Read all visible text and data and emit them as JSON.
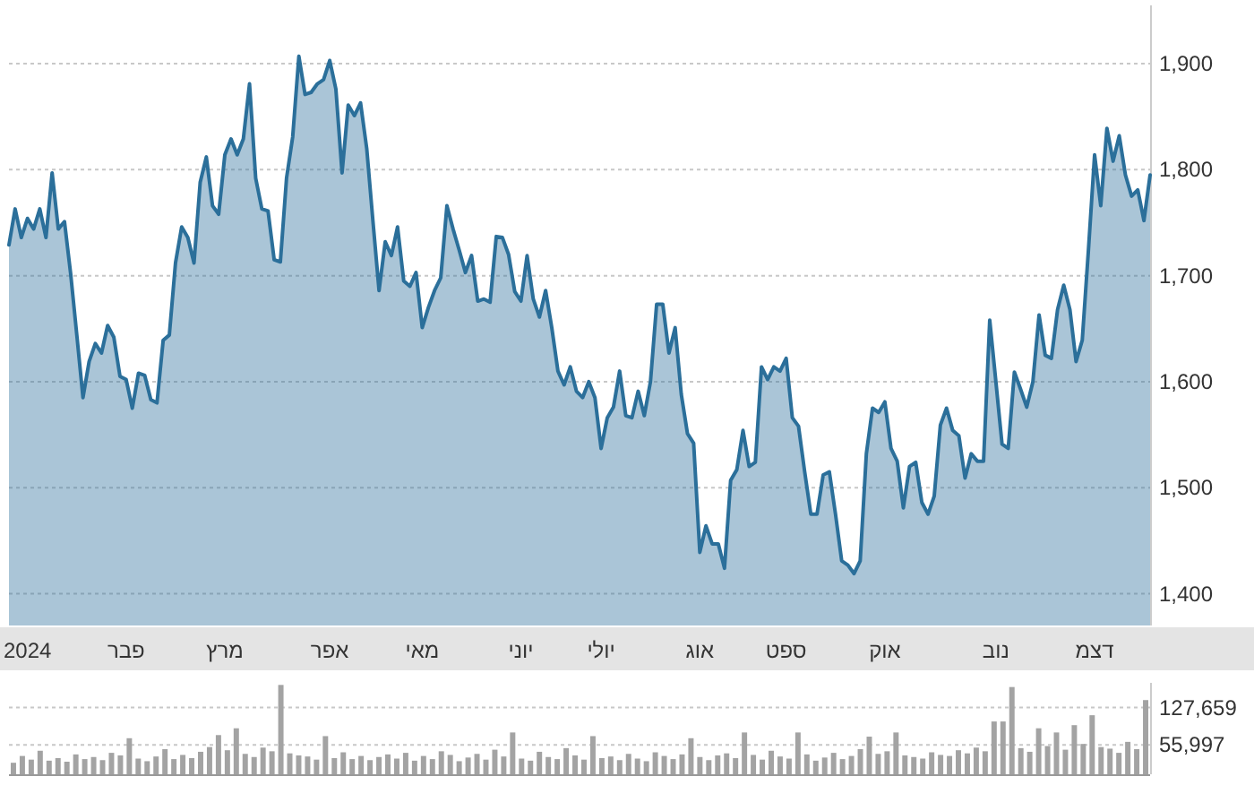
{
  "chart_data": [
    {
      "type": "area",
      "ylim": [
        1370,
        1955
      ],
      "grid": "y",
      "categories": [
        null,
        null,
        null,
        "2024",
        null,
        null,
        null,
        null,
        null,
        null,
        null,
        null,
        null,
        null,
        null,
        null,
        null,
        null,
        null,
        "פבר",
        null,
        null,
        null,
        null,
        null,
        null,
        null,
        null,
        null,
        null,
        null,
        null,
        null,
        null,
        null,
        "מרץ",
        null,
        null,
        null,
        null,
        null,
        null,
        null,
        null,
        null,
        null,
        null,
        null,
        null,
        null,
        null,
        null,
        "אפר",
        null,
        null,
        null,
        null,
        null,
        null,
        null,
        null,
        null,
        null,
        null,
        null,
        null,
        null,
        "מאי",
        null,
        null,
        null,
        null,
        null,
        null,
        null,
        null,
        null,
        null,
        null,
        null,
        null,
        null,
        null,
        "יוני",
        null,
        null,
        null,
        null,
        null,
        null,
        null,
        null,
        null,
        null,
        null,
        null,
        "יולי",
        null,
        null,
        null,
        null,
        null,
        null,
        null,
        null,
        null,
        null,
        null,
        null,
        null,
        null,
        null,
        "אוג",
        null,
        null,
        null,
        null,
        null,
        null,
        null,
        null,
        null,
        null,
        null,
        null,
        null,
        "ספט",
        null,
        null,
        null,
        null,
        null,
        null,
        null,
        null,
        null,
        null,
        null,
        null,
        null,
        null,
        null,
        "אוק",
        null,
        null,
        null,
        null,
        null,
        null,
        null,
        null,
        null,
        null,
        null,
        null,
        null,
        null,
        null,
        null,
        null,
        "נוב",
        null,
        null,
        null,
        null,
        null,
        null,
        null,
        null,
        null,
        null,
        null,
        null,
        null,
        null,
        null,
        "דצמ",
        null,
        null,
        null,
        null,
        null,
        null,
        null,
        null,
        null
      ],
      "yticks": [
        {
          "value": 1400,
          "label": "1,400"
        },
        {
          "value": 1500,
          "label": "1,500"
        },
        {
          "value": 1600,
          "label": "1,600"
        },
        {
          "value": 1700,
          "label": "1,700"
        },
        {
          "value": 1800,
          "label": "1,800"
        },
        {
          "value": 1900,
          "label": "1,900"
        }
      ],
      "series": [
        {
          "color": "#2b6f9a",
          "values": [
            1729,
            1763,
            1736,
            1754,
            1744,
            1763,
            1736,
            1797,
            1744,
            1751,
            1702,
            1644,
            1585,
            1619,
            1636,
            1627,
            1653,
            1642,
            1605,
            1602,
            1575,
            1608,
            1606,
            1583,
            1580,
            1639,
            1644,
            1712,
            1746,
            1736,
            1712,
            1788,
            1812,
            1766,
            1758,
            1814,
            1829,
            1814,
            1829,
            1881,
            1792,
            1763,
            1761,
            1715,
            1713,
            1792,
            1831,
            1907,
            1871,
            1873,
            1881,
            1885,
            1903,
            1876,
            1797,
            1861,
            1851,
            1863,
            1820,
            1752,
            1686,
            1732,
            1719,
            1746,
            1695,
            1690,
            1703,
            1651,
            1670,
            1686,
            1698,
            1766,
            1744,
            1724,
            1703,
            1719,
            1676,
            1678,
            1675,
            1737,
            1736,
            1720,
            1685,
            1676,
            1719,
            1678,
            1661,
            1686,
            1651,
            1610,
            1597,
            1614,
            1591,
            1585,
            1600,
            1585,
            1537,
            1566,
            1576,
            1610,
            1568,
            1566,
            1591,
            1568,
            1600,
            1673,
            1673,
            1627,
            1651,
            1588,
            1551,
            1542,
            1439,
            1464,
            1447,
            1447,
            1424,
            1507,
            1517,
            1554,
            1520,
            1524,
            1614,
            1602,
            1614,
            1610,
            1622,
            1566,
            1558,
            1515,
            1475,
            1475,
            1512,
            1515,
            1475,
            1431,
            1427,
            1419,
            1431,
            1532,
            1575,
            1571,
            1581,
            1537,
            1525,
            1481,
            1520,
            1524,
            1486,
            1475,
            1492,
            1559,
            1575,
            1554,
            1549,
            1509,
            1532,
            1525,
            1525,
            1658,
            1600,
            1541,
            1537,
            1609,
            1593,
            1576,
            1600,
            1663,
            1625,
            1622,
            1668,
            1691,
            1668,
            1619,
            1639,
            1724,
            1814,
            1766,
            1839,
            1808,
            1832,
            1795,
            1775,
            1781,
            1752,
            1795
          ]
        }
      ]
    },
    {
      "type": "bar",
      "color": "#a3a3a3",
      "ylim": [
        0,
        175000
      ],
      "grid": "y",
      "tick_labels": "y",
      "yticks": [
        {
          "value": 55997,
          "label": "55,997"
        },
        {
          "value": 127659,
          "label": "127,659"
        }
      ],
      "categories": [
        null,
        null,
        null,
        null,
        null,
        null,
        null,
        null,
        null,
        null,
        null,
        null,
        null,
        null,
        null,
        null,
        null,
        null,
        null,
        null,
        null,
        null,
        null,
        null,
        null,
        null,
        null,
        null,
        null,
        null,
        null,
        null,
        null,
        null,
        null,
        null,
        null,
        null,
        null,
        null,
        null,
        null,
        null,
        null,
        null,
        null,
        null,
        null,
        null,
        null,
        null,
        null,
        null,
        null,
        null,
        null,
        null,
        null,
        null,
        null,
        null,
        null,
        null,
        null,
        null,
        null,
        null,
        null,
        null,
        null,
        null,
        null,
        null,
        null,
        null,
        null,
        null,
        null,
        null,
        null,
        null,
        null,
        null,
        null,
        null,
        null,
        null,
        null,
        null,
        null,
        null,
        null,
        null,
        null,
        null,
        null,
        null,
        null,
        null,
        null,
        null,
        null,
        null,
        null,
        null,
        null,
        null,
        null,
        null,
        null,
        null,
        null,
        null,
        null,
        null,
        null,
        null,
        null,
        null,
        null,
        null,
        null,
        null,
        null,
        null,
        null,
        null,
        null
      ],
      "values": [
        22000,
        35000,
        28000,
        45000,
        26000,
        31000,
        24000,
        38000,
        29000,
        33000,
        27000,
        41000,
        36000,
        69000,
        30000,
        25000,
        34000,
        48000,
        29000,
        37000,
        31000,
        43000,
        52000,
        75000,
        46000,
        88000,
        39000,
        33000,
        51000,
        44000,
        171000,
        40000,
        36000,
        34000,
        28000,
        73000,
        31000,
        42000,
        29000,
        35000,
        27000,
        33000,
        38000,
        30000,
        41000,
        26000,
        35000,
        29000,
        44000,
        37000,
        25000,
        32000,
        39000,
        28000,
        47000,
        34000,
        80000,
        30000,
        26000,
        43000,
        33000,
        29000,
        50000,
        36000,
        28000,
        73000,
        31000,
        34000,
        27000,
        39000,
        30000,
        25000,
        42000,
        35000,
        29000,
        38000,
        69000,
        33000,
        27000,
        36000,
        40000,
        31000,
        80000,
        37000,
        28000,
        45000,
        34000,
        30000,
        80000,
        38000,
        26000,
        32000,
        41000,
        29000,
        35000,
        48000,
        72000,
        39000,
        44000,
        80000,
        36000,
        33000,
        30000,
        42000,
        37000,
        35000,
        46000,
        40000,
        51000,
        44000,
        101000,
        101000,
        167000,
        50000,
        43000,
        88000,
        54000,
        80000,
        47000,
        94000,
        58000,
        113000,
        52000,
        49000,
        41000,
        62000,
        48000,
        142000
      ]
    }
  ]
}
